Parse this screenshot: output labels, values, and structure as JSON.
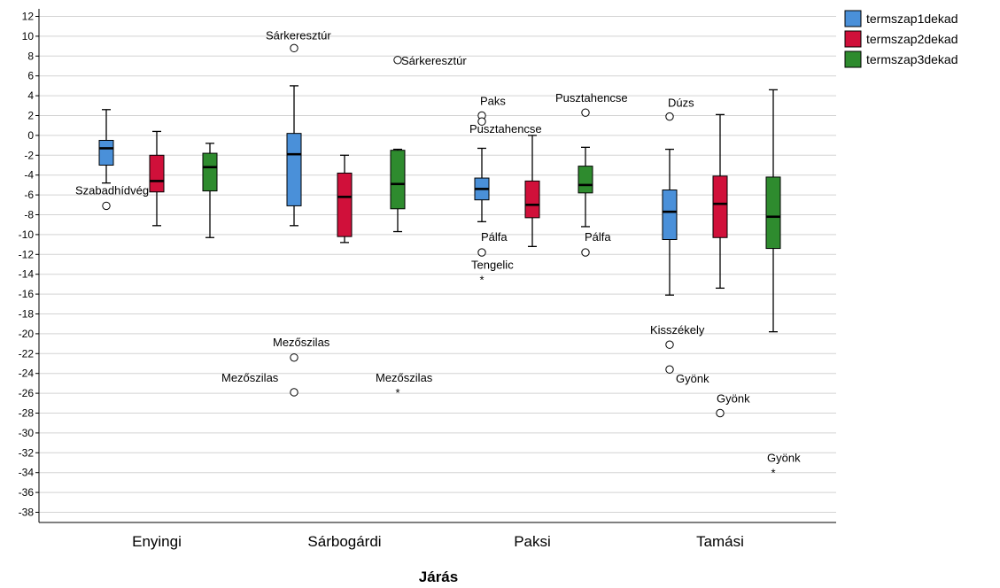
{
  "chart_data": {
    "type": "boxplot",
    "xlabel": "Járás",
    "ylabel": "",
    "ylim": [
      -39,
      12.5
    ],
    "yticks": [
      12,
      10,
      8,
      6,
      4,
      2,
      0,
      -2,
      -4,
      -6,
      -8,
      -10,
      -12,
      -14,
      -16,
      -18,
      -20,
      -22,
      -24,
      -26,
      -28,
      -30,
      -32,
      -34,
      -36,
      -38
    ],
    "grid": true,
    "legend_position": "top-right",
    "categories": [
      "Enyingi",
      "Sárbogárdi",
      "Paksi",
      "Tamási"
    ],
    "series": [
      {
        "name": "termszap1dekad",
        "color": "#4a90d9",
        "boxes": [
          {
            "whisker_low": -4.8,
            "q1": -3.0,
            "median": -1.3,
            "q3": -0.5,
            "whisker_high": 2.6
          },
          {
            "whisker_low": -9.1,
            "q1": -7.1,
            "median": -1.9,
            "q3": 0.2,
            "whisker_high": 5.0
          },
          {
            "whisker_low": -8.7,
            "q1": -6.5,
            "median": -5.4,
            "q3": -4.3,
            "whisker_high": -1.3
          },
          {
            "whisker_low": -16.1,
            "q1": -10.5,
            "median": -7.7,
            "q3": -5.5,
            "whisker_high": -1.4
          }
        ]
      },
      {
        "name": "termszap2dekad",
        "color": "#d0103a",
        "boxes": [
          {
            "whisker_low": -9.1,
            "q1": -5.7,
            "median": -4.6,
            "q3": -2.0,
            "whisker_high": 0.4
          },
          {
            "whisker_low": -10.8,
            "q1": -10.2,
            "median": -6.2,
            "q3": -3.8,
            "whisker_high": -2.0
          },
          {
            "whisker_low": -11.2,
            "q1": -8.3,
            "median": -7.0,
            "q3": -4.6,
            "whisker_high": 0.0
          },
          {
            "whisker_low": -15.4,
            "q1": -10.3,
            "median": -6.9,
            "q3": -4.1,
            "whisker_high": 2.1
          }
        ]
      },
      {
        "name": "termszap3dekad",
        "color": "#2e8b2e",
        "boxes": [
          {
            "whisker_low": -10.3,
            "q1": -5.6,
            "median": -3.2,
            "q3": -1.8,
            "whisker_high": -0.8
          },
          {
            "whisker_low": -9.7,
            "q1": -7.4,
            "median": -4.9,
            "q3": -1.5,
            "whisker_high": -1.4
          },
          {
            "whisker_low": -9.2,
            "q1": -5.8,
            "median": -5.0,
            "q3": -3.1,
            "whisker_high": -1.2
          },
          {
            "whisker_low": -19.8,
            "q1": -11.4,
            "median": -8.2,
            "q3": -4.2,
            "whisker_high": 4.6
          }
        ]
      }
    ],
    "outliers": [
      {
        "category": 0,
        "series": 0,
        "value": -7.1,
        "marker": "circle",
        "label": "Szabadhídvég"
      },
      {
        "category": 1,
        "series": 0,
        "value": 8.8,
        "marker": "circle",
        "label": "Sárkeresztúr"
      },
      {
        "category": 1,
        "series": 2,
        "value": 7.6,
        "marker": "circle",
        "label": "Sárkeresztúr"
      },
      {
        "category": 1,
        "series": 0,
        "value": -22.4,
        "marker": "circle",
        "label": "Mezőszilas"
      },
      {
        "category": 1,
        "series": 0,
        "value": -25.9,
        "marker": "circle",
        "label": "Mezőszilas"
      },
      {
        "category": 1,
        "series": 2,
        "value": -25.9,
        "marker": "star",
        "label": "Mezőszilas"
      },
      {
        "category": 2,
        "series": 0,
        "value": 2.0,
        "marker": "circle",
        "label": "Paks"
      },
      {
        "category": 2,
        "series": 0,
        "value": 1.4,
        "marker": "circle",
        "label": "Pusztahencse"
      },
      {
        "category": 2,
        "series": 2,
        "value": 2.3,
        "marker": "circle",
        "label": "Pusztahencse"
      },
      {
        "category": 2,
        "series": 0,
        "value": -11.8,
        "marker": "circle",
        "label": "Pálfa"
      },
      {
        "category": 2,
        "series": 0,
        "value": -14.5,
        "marker": "star",
        "label": "Tengelic"
      },
      {
        "category": 2,
        "series": 2,
        "value": -11.8,
        "marker": "circle",
        "label": "Pálfa"
      },
      {
        "category": 3,
        "series": 0,
        "value": 1.9,
        "marker": "circle",
        "label": "Dúzs"
      },
      {
        "category": 3,
        "series": 0,
        "value": -21.1,
        "marker": "circle",
        "label": "Kisszékely"
      },
      {
        "category": 3,
        "series": 0,
        "value": -23.6,
        "marker": "circle",
        "label": "Gyönk"
      },
      {
        "category": 3,
        "series": 1,
        "value": -28.0,
        "marker": "circle",
        "label": "Gyönk"
      },
      {
        "category": 3,
        "series": 2,
        "value": -34.0,
        "marker": "star",
        "label": "Gyönk"
      }
    ]
  }
}
